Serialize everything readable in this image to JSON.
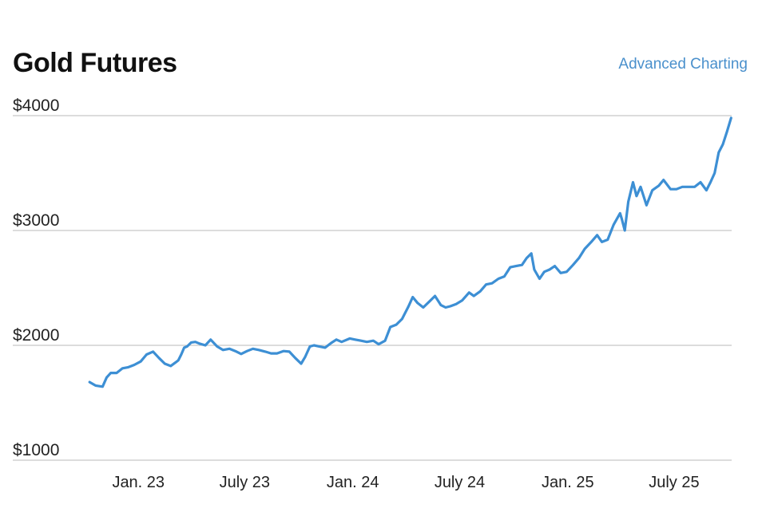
{
  "header": {
    "title": "Gold Futures",
    "link_label": "Advanced Charting"
  },
  "colors": {
    "line": "#3d8fd4",
    "grid": "#c8c8c8",
    "link": "#4a90cc"
  },
  "chart_data": {
    "type": "line",
    "title": "Gold Futures",
    "xlabel": "",
    "ylabel": "",
    "ylim": [
      1000,
      4000
    ],
    "yticks": [
      1000,
      2000,
      3000,
      4000
    ],
    "ytick_labels": [
      "$1000",
      "$2000",
      "$3000",
      "$4000"
    ],
    "xlim": [
      "2022-10-07",
      "2025-10-07"
    ],
    "xticks": [
      "2023-01-01",
      "2023-07-01",
      "2024-01-01",
      "2024-07-01",
      "2025-01-01",
      "2025-07-01"
    ],
    "xtick_labels": [
      "Jan. 23",
      "July 23",
      "Jan. 24",
      "July 24",
      "Jan. 25",
      "July 25"
    ],
    "grid": "horizontal",
    "series": [
      {
        "x": [
          "2022-10-10",
          "2022-10-20",
          "2022-11-01",
          "2022-11-08",
          "2022-11-15",
          "2022-11-25",
          "2022-12-05",
          "2022-12-15",
          "2022-12-25",
          "2023-01-05",
          "2023-01-15",
          "2023-01-26",
          "2023-02-05",
          "2023-02-15",
          "2023-02-25",
          "2023-03-05",
          "2023-03-10",
          "2023-03-15",
          "2023-03-20",
          "2023-03-25",
          "2023-04-01",
          "2023-04-08",
          "2023-04-15",
          "2023-04-25",
          "2023-05-04",
          "2023-05-15",
          "2023-05-25",
          "2023-06-05",
          "2023-06-15",
          "2023-06-25",
          "2023-07-05",
          "2023-07-15",
          "2023-07-25",
          "2023-08-05",
          "2023-08-15",
          "2023-08-25",
          "2023-09-05",
          "2023-09-15",
          "2023-09-25",
          "2023-10-05",
          "2023-10-12",
          "2023-10-20",
          "2023-10-27",
          "2023-11-05",
          "2023-11-15",
          "2023-11-25",
          "2023-12-04",
          "2023-12-13",
          "2023-12-27",
          "2024-01-05",
          "2024-01-15",
          "2024-01-25",
          "2024-02-05",
          "2024-02-14",
          "2024-02-25",
          "2024-03-05",
          "2024-03-15",
          "2024-03-25",
          "2024-04-05",
          "2024-04-12",
          "2024-04-20",
          "2024-04-30",
          "2024-05-10",
          "2024-05-20",
          "2024-05-30",
          "2024-06-07",
          "2024-06-15",
          "2024-06-25",
          "2024-07-05",
          "2024-07-17",
          "2024-07-25",
          "2024-08-05",
          "2024-08-15",
          "2024-08-25",
          "2024-09-05",
          "2024-09-15",
          "2024-09-25",
          "2024-10-05",
          "2024-10-15",
          "2024-10-23",
          "2024-10-31",
          "2024-11-05",
          "2024-11-14",
          "2024-11-22",
          "2024-12-01",
          "2024-12-10",
          "2024-12-20",
          "2024-12-30",
          "2025-01-10",
          "2025-01-20",
          "2025-01-30",
          "2025-02-10",
          "2025-02-20",
          "2025-02-28",
          "2025-03-10",
          "2025-03-20",
          "2025-03-31",
          "2025-04-03",
          "2025-04-08",
          "2025-04-14",
          "2025-04-22",
          "2025-04-28",
          "2025-05-05",
          "2025-05-15",
          "2025-05-25",
          "2025-06-05",
          "2025-06-13",
          "2025-06-25",
          "2025-07-05",
          "2025-07-15",
          "2025-07-25",
          "2025-08-05",
          "2025-08-15",
          "2025-08-25",
          "2025-09-01",
          "2025-09-08",
          "2025-09-15",
          "2025-09-22",
          "2025-09-29",
          "2025-10-06"
        ],
        "values": [
          1680,
          1650,
          1640,
          1720,
          1760,
          1760,
          1800,
          1810,
          1830,
          1860,
          1920,
          1945,
          1890,
          1840,
          1820,
          1850,
          1870,
          1920,
          1980,
          1990,
          2025,
          2030,
          2015,
          2000,
          2050,
          1990,
          1960,
          1970,
          1950,
          1925,
          1950,
          1970,
          1960,
          1945,
          1930,
          1930,
          1950,
          1945,
          1890,
          1840,
          1900,
          1990,
          2000,
          1990,
          1980,
          2020,
          2050,
          2030,
          2060,
          2050,
          2040,
          2030,
          2040,
          2010,
          2040,
          2160,
          2180,
          2230,
          2340,
          2420,
          2370,
          2330,
          2380,
          2430,
          2350,
          2330,
          2340,
          2360,
          2390,
          2460,
          2430,
          2470,
          2530,
          2540,
          2580,
          2600,
          2680,
          2690,
          2700,
          2760,
          2800,
          2660,
          2580,
          2640,
          2660,
          2690,
          2630,
          2640,
          2700,
          2760,
          2840,
          2900,
          2960,
          2900,
          2920,
          3050,
          3150,
          3100,
          3000,
          3250,
          3420,
          3300,
          3380,
          3220,
          3350,
          3390,
          3440,
          3360,
          3360,
          3380,
          3380,
          3380,
          3420,
          3350,
          3420,
          3500,
          3680,
          3750,
          3860,
          3980
        ]
      }
    ]
  }
}
